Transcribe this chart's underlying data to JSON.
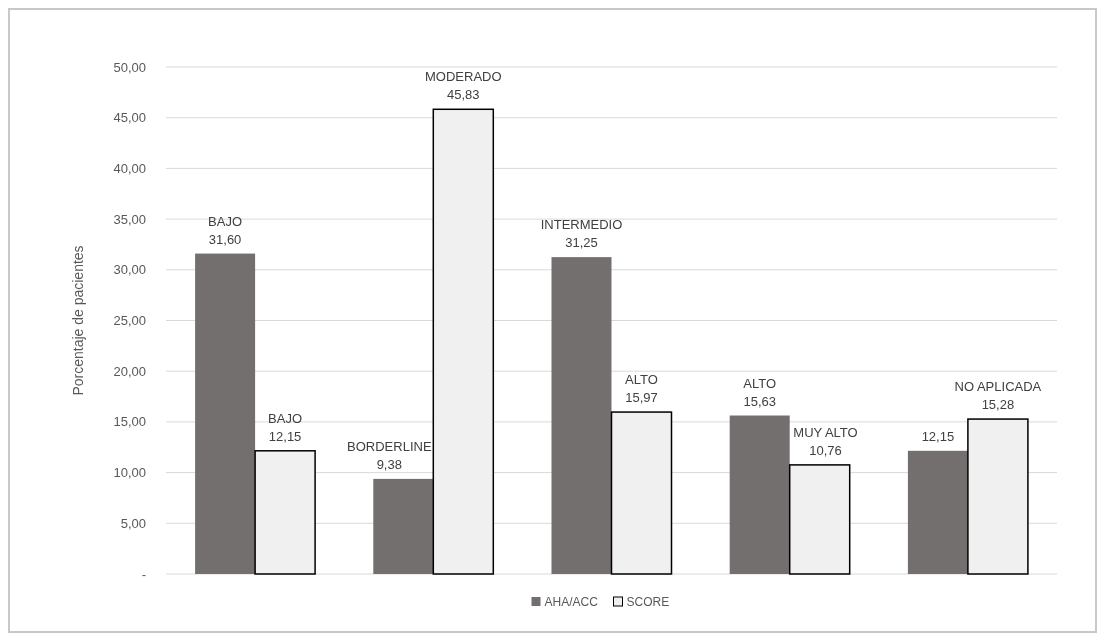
{
  "chart_data": {
    "type": "bar",
    "ylabel": "Porcentaje de pacientes",
    "categories": [
      null,
      null,
      null,
      null,
      null
    ],
    "series": [
      {
        "name": "AHA/ACC",
        "color": "#736f6e",
        "values": [
          31.6,
          9.38,
          31.25,
          15.63,
          12.15
        ],
        "value_labels": [
          "BAJO\n31,60",
          "BORDERLINE\n9,38",
          "INTERMEDIO\n31,25",
          "ALTO\n15,63",
          "12,15"
        ]
      },
      {
        "name": "SCORE",
        "color": "#f0f0f0",
        "values": [
          12.15,
          45.83,
          15.97,
          10.76,
          15.28
        ],
        "value_labels": [
          "BAJO\n12,15",
          "MODERADO\n45,83",
          "ALTO\n15,97",
          "MUY ALTO\n10,76",
          "NO APLICADA\n15,28"
        ]
      }
    ],
    "ylim": [
      0,
      50
    ],
    "yticks": [
      {
        "value": 0,
        "label": "-"
      },
      {
        "value": 5,
        "label": "5,00"
      },
      {
        "value": 10,
        "label": "10,00"
      },
      {
        "value": 15,
        "label": "15,00"
      },
      {
        "value": 20,
        "label": "20,00"
      },
      {
        "value": 25,
        "label": "25,00"
      },
      {
        "value": 30,
        "label": "30,00"
      },
      {
        "value": 35,
        "label": "35,00"
      },
      {
        "value": 40,
        "label": "40,00"
      },
      {
        "value": 45,
        "label": "45,00"
      },
      {
        "value": 50,
        "label": "50,00"
      }
    ],
    "grid": "y",
    "legend": "bottom"
  }
}
